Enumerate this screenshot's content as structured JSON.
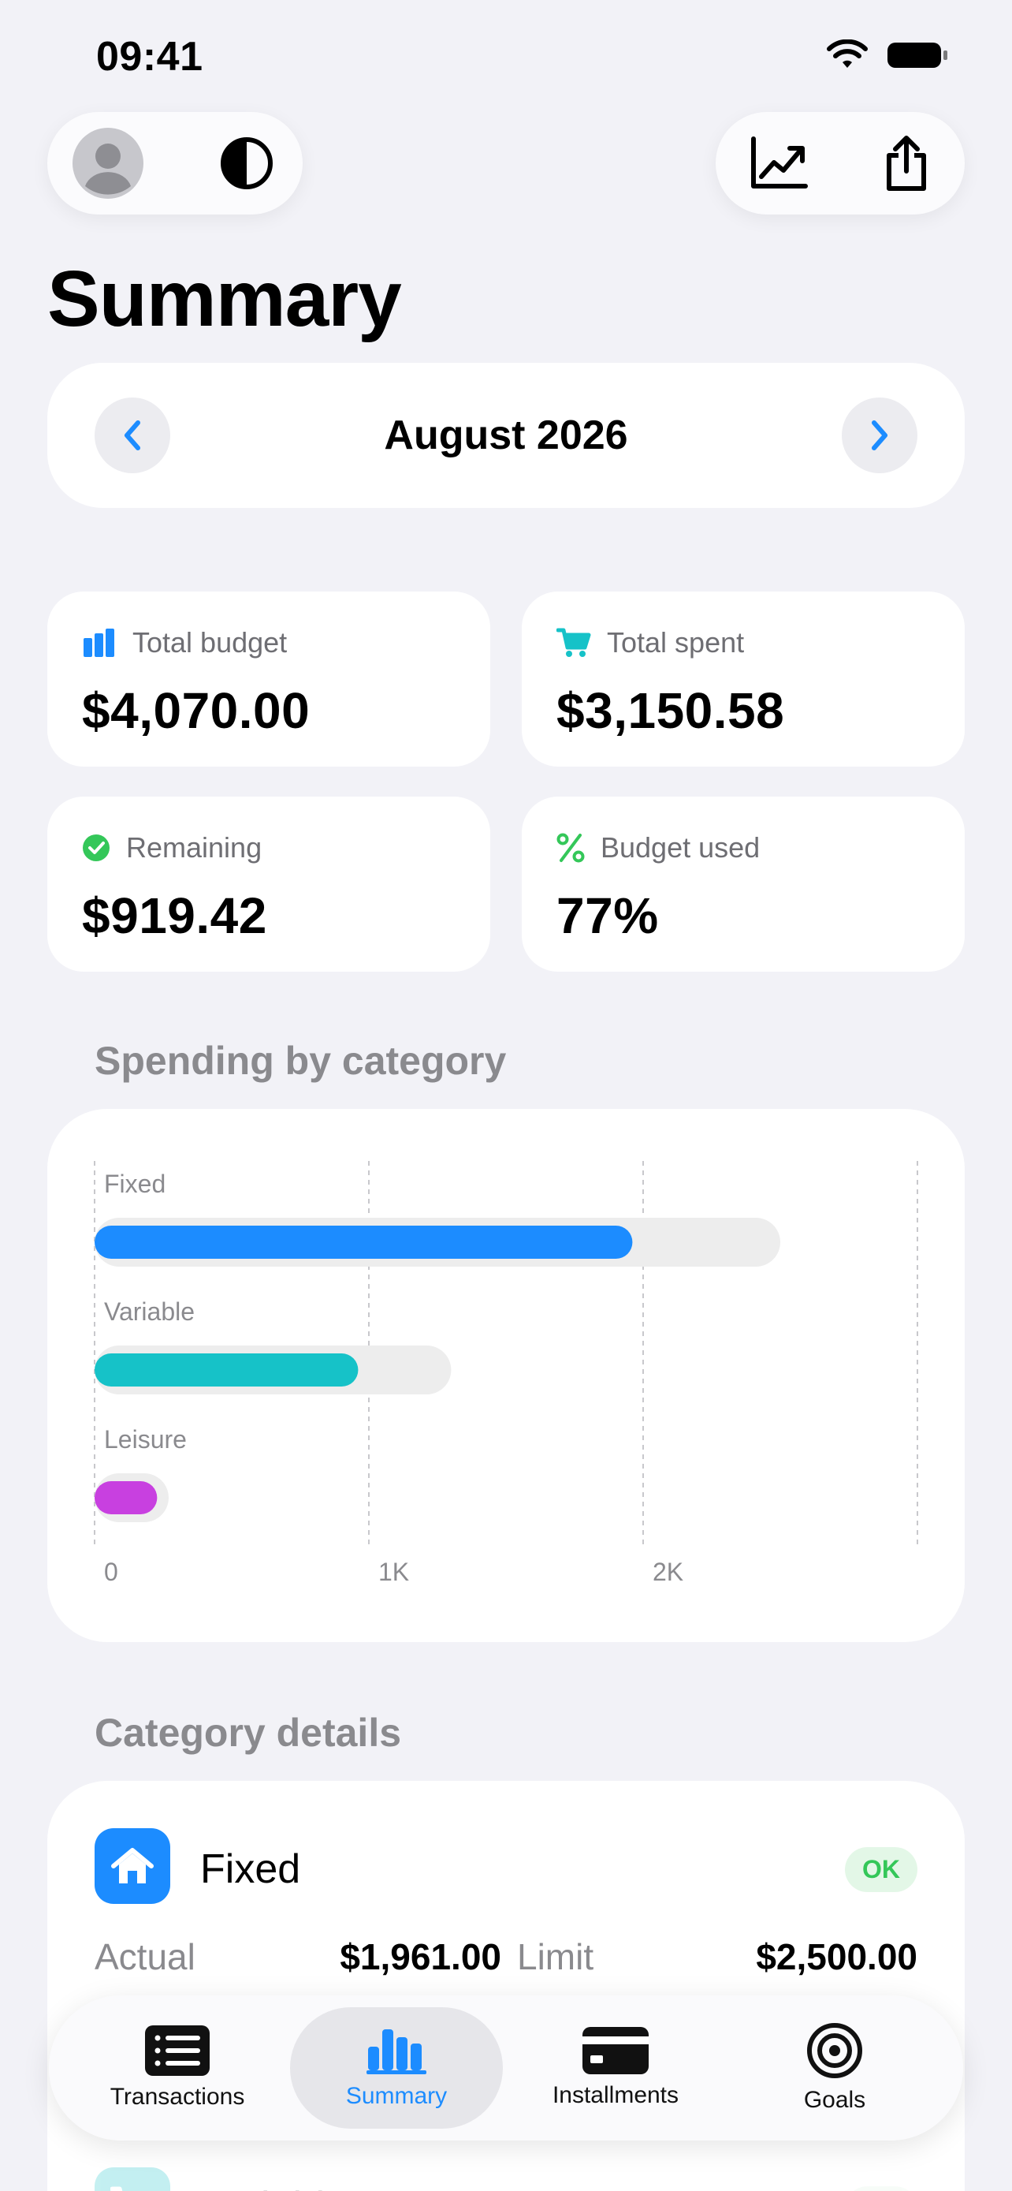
{
  "status_bar": {
    "time": "09:41"
  },
  "header": {
    "title": "Summary",
    "left_controls": [
      "profile-icon",
      "contrast-icon"
    ],
    "right_controls": [
      "trend-chart-icon",
      "share-icon"
    ]
  },
  "month_picker": {
    "label": "August 2026"
  },
  "stats": [
    {
      "label": "Total budget",
      "value": "$4,070.00",
      "icon": "budget-bars-icon",
      "color": "#1c8cff"
    },
    {
      "label": "Total spent",
      "value": "$3,150.58",
      "icon": "cart-icon",
      "color": "#16c2c8"
    },
    {
      "label": "Remaining",
      "value": "$919.42",
      "icon": "check-circle-icon",
      "color": "#34c759"
    },
    {
      "label": "Budget used",
      "value": "77%",
      "icon": "percent-icon",
      "color": "#34c759"
    }
  ],
  "sections": {
    "spending_title": "Spending by category",
    "details_title": "Category details"
  },
  "chart_data": {
    "type": "bar",
    "orientation": "horizontal",
    "categories": [
      "Fixed",
      "Variable",
      "Leisure"
    ],
    "series": [
      {
        "values": [
          1961,
          961,
          228
        ],
        "colors": [
          "#1c8cff",
          "#16c2c8",
          "#c840e0"
        ]
      },
      {
        "values": [
          2500,
          1300,
          270
        ],
        "color": "#ededed"
      }
    ],
    "xlim": [
      0,
      3000
    ],
    "x_ticks": [
      0,
      1000,
      2000
    ],
    "x_tick_labels": [
      "0",
      "1K",
      "2K"
    ],
    "grid": true
  },
  "category_details": [
    {
      "name": "Fixed",
      "status": "OK",
      "actual_label": "Actual",
      "actual": "$1,961.00",
      "limit_label": "Limit",
      "limit": "$2,500.00",
      "icon": "house-icon"
    },
    {
      "name": "Variable",
      "status": "OK",
      "icon": "cart-icon"
    }
  ],
  "tabbar": {
    "tabs": [
      {
        "label": "Transactions",
        "icon": "list-icon",
        "active": false
      },
      {
        "label": "Summary",
        "icon": "bar-chart-icon",
        "active": true
      },
      {
        "label": "Installments",
        "icon": "card-icon",
        "active": false
      },
      {
        "label": "Goals",
        "icon": "target-icon",
        "active": false
      }
    ]
  }
}
